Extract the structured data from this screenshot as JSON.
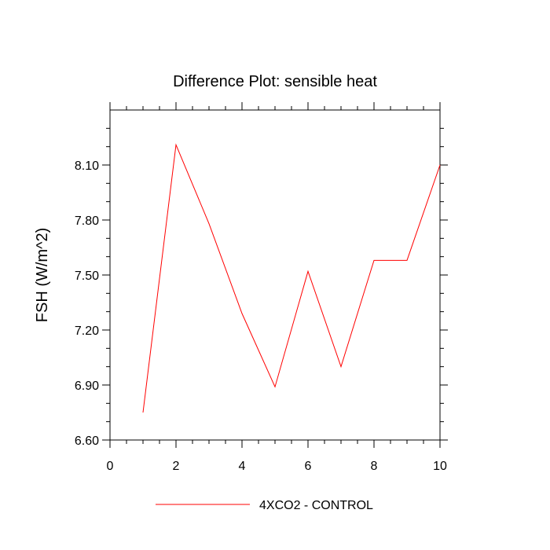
{
  "chart_data": {
    "type": "line",
    "title": "Difference Plot: sensible heat",
    "ylabel": "FSH  (W/m^2)",
    "xlabel": "",
    "xlim": [
      0,
      10
    ],
    "ylim": [
      6.6,
      8.4
    ],
    "x_ticks": [
      0,
      2,
      4,
      6,
      8,
      10
    ],
    "x_tick_labels": [
      "0",
      "2",
      "4",
      "6",
      "8",
      "10"
    ],
    "y_ticks": [
      6.6,
      6.9,
      7.2,
      7.5,
      7.8,
      8.1
    ],
    "y_tick_labels": [
      "6.60",
      "6.90",
      "7.20",
      "7.50",
      "7.80",
      "8.10"
    ],
    "grid": false,
    "legend_position": "bottom",
    "series": [
      {
        "name": "4XCO2 - CONTROL",
        "color": "#ff0000",
        "x": [
          1,
          2,
          3,
          4,
          5,
          6,
          7,
          8,
          9,
          10
        ],
        "values": [
          6.75,
          8.21,
          7.78,
          7.29,
          6.89,
          7.52,
          7.0,
          7.58,
          7.58,
          8.1
        ]
      }
    ]
  }
}
